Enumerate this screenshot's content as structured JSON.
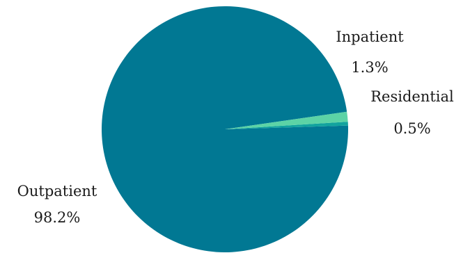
{
  "chart_data": {
    "type": "pie",
    "title": "",
    "slices": [
      {
        "name": "Outpatient",
        "value": 98.2,
        "value_label": "98.2%",
        "color": "#017893"
      },
      {
        "name": "Residential",
        "value": 0.5,
        "value_label": "0.5%",
        "color": "#12a39e"
      },
      {
        "name": "Inpatient",
        "value": 1.3,
        "value_label": "1.3%",
        "color": "#5cd3a6"
      }
    ],
    "legend": "none",
    "labels_outside": true
  }
}
